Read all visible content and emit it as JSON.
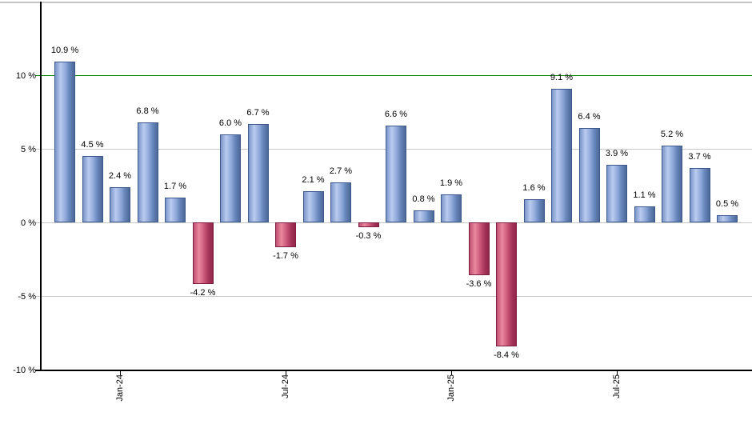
{
  "chart_data": {
    "type": "bar",
    "title": "",
    "values": [
      10.9,
      4.5,
      2.4,
      6.8,
      1.7,
      -4.2,
      6.0,
      6.7,
      -1.7,
      2.1,
      2.7,
      -0.3,
      6.6,
      0.8,
      1.9,
      -3.6,
      -8.4,
      1.6,
      9.1,
      6.4,
      3.9,
      1.1,
      5.2,
      3.7,
      0.5
    ],
    "bar_labels": [
      "10.9 %",
      "4.5 %",
      "2.4 %",
      "6.8 %",
      "1.7 %",
      "-4.2 %",
      "6.0 %",
      "6.7 %",
      "-1.7 %",
      "2.1 %",
      "2.7 %",
      "-0.3 %",
      "6.6 %",
      "0.8 %",
      "1.9 %",
      "-3.6 %",
      "-8.4 %",
      "1.6 %",
      "9.1 %",
      "6.4 %",
      "3.9 %",
      "1.1 %",
      "5.2 %",
      "3.7 %",
      "0.5 %"
    ],
    "x_ticks": [
      {
        "label": "Jan-24",
        "bar_index": 2
      },
      {
        "label": "Jul-24",
        "bar_index": 8
      },
      {
        "label": "Jan-25",
        "bar_index": 14
      },
      {
        "label": "Jul-25",
        "bar_index": 20
      }
    ],
    "y_ticks": [
      {
        "label": "10 %",
        "value": 10
      },
      {
        "label": "5 %",
        "value": 5
      },
      {
        "label": "0 %",
        "value": 0
      },
      {
        "label": "-5 %",
        "value": -5
      },
      {
        "label": "-10 %",
        "value": -10
      }
    ],
    "ylim": [
      -10,
      15
    ],
    "grid": true,
    "legend": false,
    "reference_line": {
      "value": 10,
      "color": "#008000"
    },
    "colors": {
      "positive_bar": "#7b95ca",
      "negative_bar": "#bf4f70",
      "gridline": "#c9c9c9",
      "axis": "#000000",
      "background": "#ffffff"
    }
  }
}
